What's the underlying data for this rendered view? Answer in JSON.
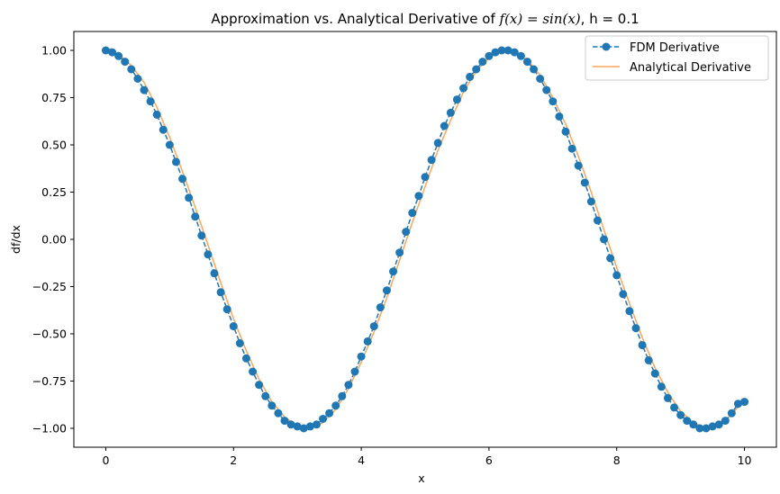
{
  "chart_data": {
    "type": "line",
    "title": {
      "prefix": "Approximation vs. Analytical Derivative of ",
      "math": "f(x) = sin(x)",
      "suffix": ", h = 0.1"
    },
    "xlabel": "x",
    "ylabel": "df/dx",
    "xlim": [
      -0.5,
      10.5
    ],
    "ylim": [
      -1.1,
      1.1
    ],
    "x_ticks": [
      0,
      2,
      4,
      6,
      8,
      10
    ],
    "x_tick_labels": [
      "0",
      "2",
      "4",
      "6",
      "8",
      "10"
    ],
    "y_ticks": [
      1.0,
      0.75,
      0.5,
      0.25,
      0.0,
      -0.25,
      -0.5,
      -0.75,
      -1.0
    ],
    "y_tick_labels": [
      "1.00",
      "0.75",
      "0.50",
      "0.25",
      "0.00",
      "−0.25",
      "−0.50",
      "−0.75",
      "−1.00"
    ],
    "grid": false,
    "legend_position": "top-right",
    "series": [
      {
        "name": "FDM Derivative",
        "style": "dashed line with circle markers",
        "color": "#1f77b4",
        "x": [
          0.0,
          0.1,
          0.2,
          0.3,
          0.4,
          0.5,
          0.6,
          0.7,
          0.8,
          0.9,
          1.0,
          1.1,
          1.2,
          1.3,
          1.4,
          1.5,
          1.6,
          1.7,
          1.8,
          1.9,
          2.0,
          2.1,
          2.2,
          2.3,
          2.4,
          2.5,
          2.6,
          2.7,
          2.8,
          2.9,
          3.0,
          3.1,
          3.2,
          3.3,
          3.4,
          3.5,
          3.6,
          3.7,
          3.8,
          3.9,
          4.0,
          4.1,
          4.2,
          4.3,
          4.4,
          4.5,
          4.6,
          4.7,
          4.8,
          4.9,
          5.0,
          5.1,
          5.2,
          5.3,
          5.4,
          5.5,
          5.6,
          5.7,
          5.8,
          5.9,
          6.0,
          6.1,
          6.2,
          6.3,
          6.4,
          6.5,
          6.6,
          6.7,
          6.8,
          6.9,
          7.0,
          7.1,
          7.2,
          7.3,
          7.4,
          7.5,
          7.6,
          7.7,
          7.8,
          7.9,
          8.0,
          8.1,
          8.2,
          8.3,
          8.4,
          8.5,
          8.6,
          8.7,
          8.8,
          8.9,
          9.0,
          9.1,
          9.2,
          9.3,
          9.4,
          9.5,
          9.6,
          9.7,
          9.8,
          9.9,
          10.0
        ],
        "y": [
          1.0,
          0.99,
          0.97,
          0.94,
          0.9,
          0.85,
          0.79,
          0.73,
          0.66,
          0.58,
          0.5,
          0.41,
          0.32,
          0.22,
          0.12,
          0.02,
          -0.08,
          -0.18,
          -0.28,
          -0.37,
          -0.46,
          -0.55,
          -0.63,
          -0.7,
          -0.77,
          -0.83,
          -0.88,
          -0.92,
          -0.96,
          -0.98,
          -0.99,
          -1.0,
          -0.99,
          -0.98,
          -0.95,
          -0.92,
          -0.88,
          -0.83,
          -0.77,
          -0.7,
          -0.62,
          -0.54,
          -0.46,
          -0.36,
          -0.27,
          -0.17,
          -0.07,
          0.04,
          0.14,
          0.23,
          0.33,
          0.42,
          0.51,
          0.6,
          0.67,
          0.74,
          0.8,
          0.86,
          0.9,
          0.94,
          0.97,
          0.99,
          1.0,
          1.0,
          0.99,
          0.97,
          0.94,
          0.9,
          0.85,
          0.79,
          0.73,
          0.65,
          0.57,
          0.48,
          0.39,
          0.3,
          0.2,
          0.1,
          0.0,
          -0.1,
          -0.19,
          -0.29,
          -0.38,
          -0.47,
          -0.56,
          -0.64,
          -0.71,
          -0.78,
          -0.84,
          -0.89,
          -0.93,
          -0.96,
          -0.98,
          -1.0,
          -1.0,
          -0.99,
          -0.98,
          -0.96,
          -0.92,
          -0.87,
          -0.86
        ]
      },
      {
        "name": "Analytical Derivative",
        "style": "solid line",
        "color": "#ff7f0e",
        "x": [
          0.0,
          0.2,
          0.4,
          0.6,
          0.8,
          1.0,
          1.2,
          1.4,
          1.6,
          1.8,
          2.0,
          2.2,
          2.4,
          2.6,
          2.8,
          3.0,
          3.2,
          3.4,
          3.6,
          3.8,
          4.0,
          4.2,
          4.4,
          4.6,
          4.8,
          5.0,
          5.2,
          5.4,
          5.6,
          5.8,
          6.0,
          6.2,
          6.4,
          6.6,
          6.8,
          7.0,
          7.2,
          7.4,
          7.6,
          7.8,
          8.0,
          8.2,
          8.4,
          8.6,
          8.8,
          9.0,
          9.2,
          9.4,
          9.6,
          9.8,
          10.0
        ],
        "y": [
          1.0,
          0.98,
          0.92,
          0.83,
          0.7,
          0.54,
          0.36,
          0.17,
          -0.03,
          -0.23,
          -0.42,
          -0.59,
          -0.74,
          -0.86,
          -0.94,
          -0.99,
          -1.0,
          -0.97,
          -0.9,
          -0.79,
          -0.65,
          -0.49,
          -0.31,
          -0.11,
          0.09,
          0.28,
          0.47,
          0.63,
          0.78,
          0.89,
          0.96,
          1.0,
          0.99,
          0.95,
          0.87,
          0.75,
          0.61,
          0.44,
          0.25,
          0.05,
          -0.15,
          -0.34,
          -0.52,
          -0.68,
          -0.81,
          -0.91,
          -0.97,
          -1.0,
          -0.98,
          -0.93,
          -0.84
        ]
      }
    ]
  }
}
